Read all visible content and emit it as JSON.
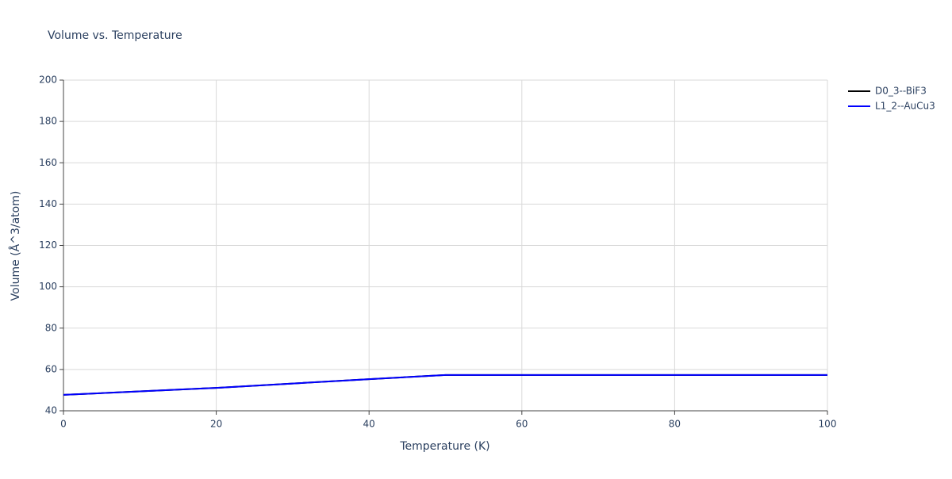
{
  "chart_data": {
    "type": "line",
    "title": "Volume vs. Temperature",
    "x_label": "Temperature (K)",
    "y_label": "Volume (Å^3/atom)",
    "x": [
      0,
      20,
      40,
      50,
      60,
      80,
      100
    ],
    "series": [
      {
        "name": "D0_3--BiF3",
        "color": "#000000",
        "values": [
          47.7,
          51.1,
          55.3,
          57.3,
          57.3,
          57.3,
          57.3
        ]
      },
      {
        "name": "L1_2--AuCu3",
        "color": "#0000ff",
        "values": [
          47.7,
          51.1,
          55.3,
          57.3,
          57.3,
          57.3,
          57.3
        ]
      }
    ],
    "xlim": [
      0,
      100
    ],
    "xticks": [
      0,
      20,
      40,
      60,
      80,
      100
    ],
    "ylim": [
      40,
      200
    ],
    "yticks": [
      40,
      60,
      80,
      100,
      120,
      140,
      160,
      180,
      200
    ],
    "grid": true,
    "legend": "right"
  }
}
